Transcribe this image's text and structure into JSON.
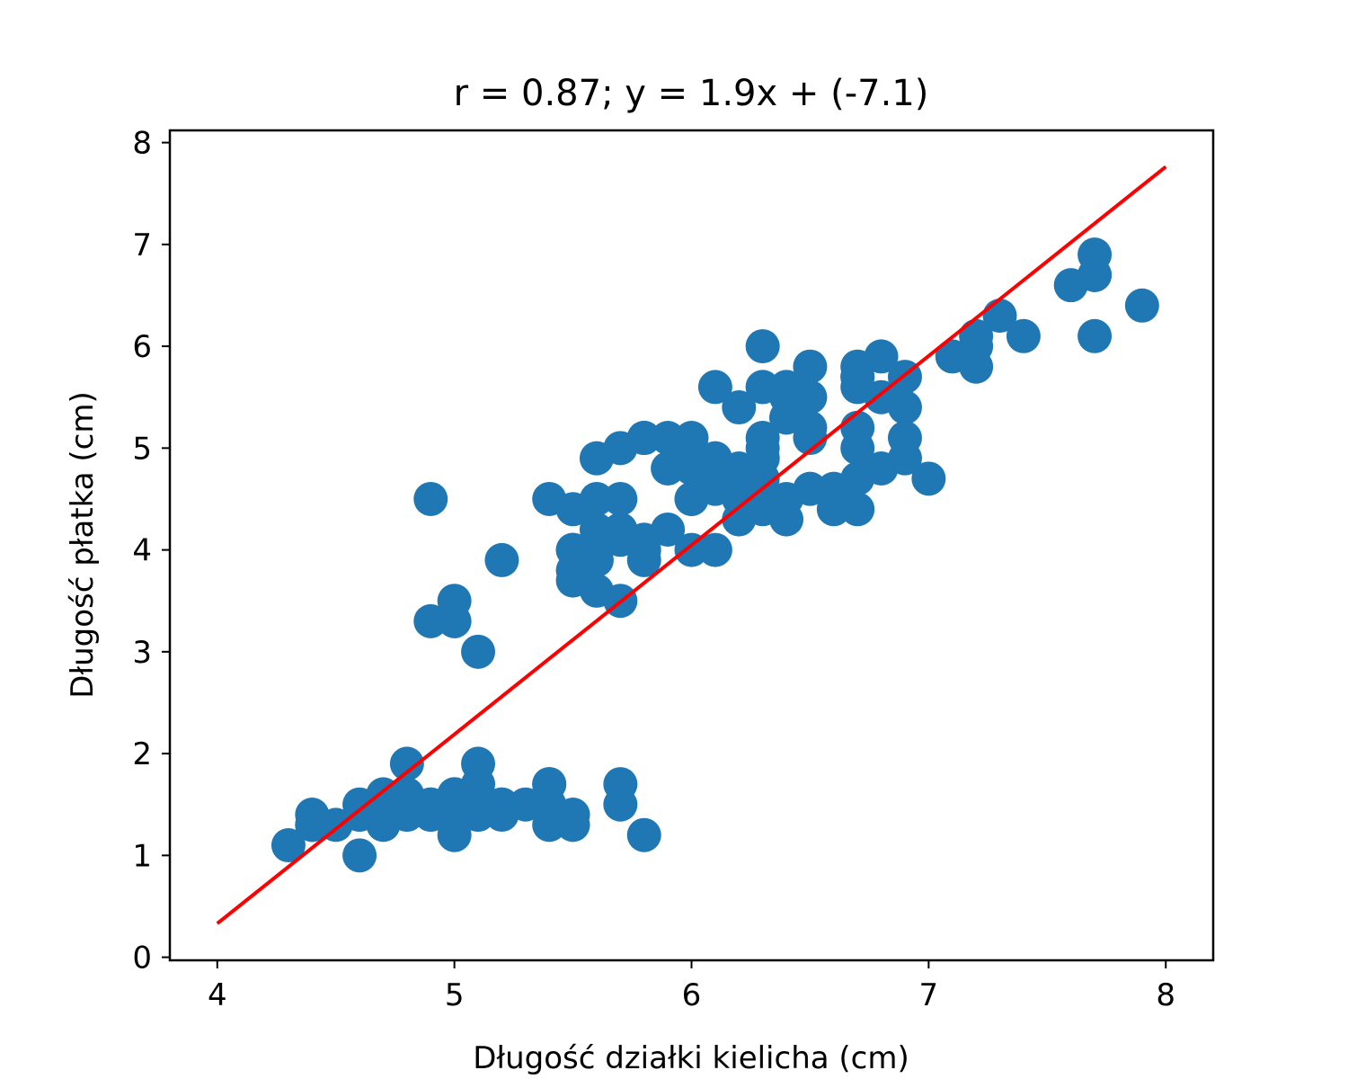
{
  "chart_data": {
    "type": "scatter",
    "title": "r = 0.87; y = 1.9x + (-7.1)",
    "xlabel": "Długość działki kielicha (cm)",
    "ylabel": "Długość płatka (cm)",
    "xlim": [
      3.8,
      8.2
    ],
    "ylim": [
      -0.03,
      8.12
    ],
    "xticks": [
      4,
      5,
      6,
      7,
      8
    ],
    "xtick_labels": [
      "4",
      "5",
      "6",
      "7",
      "8"
    ],
    "yticks": [
      0,
      1,
      2,
      3,
      4,
      5,
      6,
      7,
      8
    ],
    "ytick_labels": [
      "0",
      "1",
      "2",
      "3",
      "4",
      "5",
      "6",
      "7",
      "8"
    ],
    "grid": false,
    "colors": {
      "points": "#1f77b4",
      "fit_line": "#ff0000",
      "axes": "#000000"
    },
    "series": [
      {
        "x": [
          5.1,
          4.9,
          4.7,
          4.6,
          5.0,
          5.4,
          4.6,
          5.0,
          4.4,
          4.9,
          5.4,
          4.8,
          4.8,
          4.3,
          5.8,
          5.7,
          5.4,
          5.1,
          5.7,
          5.1,
          5.4,
          5.1,
          4.6,
          5.1,
          4.8,
          5.0,
          5.0,
          5.2,
          5.2,
          4.7,
          4.8,
          5.4,
          5.2,
          5.5,
          4.9,
          5.0,
          5.5,
          4.9,
          4.4,
          5.1,
          5.0,
          4.5,
          4.4,
          5.0,
          5.1,
          4.8,
          5.1,
          4.6,
          5.3,
          5.0,
          7.0,
          6.4,
          6.9,
          5.5,
          6.5,
          5.7,
          6.3,
          4.9,
          6.6,
          5.2,
          5.0,
          5.9,
          6.0,
          6.1,
          5.6,
          6.7,
          5.6,
          5.8,
          6.2,
          5.6,
          5.9,
          6.1,
          6.3,
          6.1,
          6.4,
          6.6,
          6.8,
          6.7,
          6.0,
          5.7,
          5.5,
          5.5,
          5.8,
          6.0,
          5.4,
          6.0,
          6.7,
          6.3,
          5.6,
          5.5,
          5.5,
          6.1,
          5.8,
          5.0,
          5.6,
          5.7,
          5.7,
          6.2,
          5.1,
          5.7,
          6.3,
          5.8,
          7.1,
          6.3,
          6.5,
          7.6,
          4.9,
          7.3,
          6.7,
          7.2,
          6.5,
          6.4,
          6.8,
          5.7,
          5.8,
          6.4,
          6.5,
          7.7,
          7.7,
          6.0,
          6.9,
          5.6,
          7.7,
          6.3,
          6.7,
          7.2,
          6.2,
          6.1,
          6.4,
          7.2,
          7.4,
          7.9,
          6.4,
          6.3,
          6.1,
          7.7,
          6.3,
          6.4,
          6.0,
          6.9,
          6.7,
          6.9,
          5.8,
          6.8,
          6.7,
          6.7,
          6.3,
          6.5,
          6.2,
          5.9
        ],
        "y": [
          1.4,
          1.4,
          1.3,
          1.5,
          1.4,
          1.7,
          1.4,
          1.5,
          1.4,
          1.5,
          1.5,
          1.6,
          1.4,
          1.1,
          1.2,
          1.5,
          1.3,
          1.4,
          1.7,
          1.5,
          1.7,
          1.5,
          1.0,
          1.7,
          1.9,
          1.6,
          1.6,
          1.5,
          1.4,
          1.6,
          1.6,
          1.5,
          1.5,
          1.4,
          1.5,
          1.2,
          1.3,
          1.4,
          1.3,
          1.5,
          1.3,
          1.3,
          1.3,
          1.6,
          1.9,
          1.4,
          1.6,
          1.4,
          1.5,
          1.4,
          4.7,
          4.5,
          4.9,
          4.0,
          4.6,
          4.5,
          4.7,
          3.3,
          4.6,
          3.9,
          3.5,
          4.2,
          4.0,
          4.7,
          3.6,
          4.4,
          4.5,
          4.1,
          4.5,
          3.9,
          4.8,
          4.0,
          4.9,
          4.7,
          4.3,
          4.4,
          4.8,
          5.0,
          4.5,
          3.5,
          3.8,
          3.7,
          3.9,
          5.1,
          4.5,
          4.5,
          4.7,
          4.4,
          4.1,
          4.0,
          4.4,
          4.6,
          4.0,
          3.3,
          4.2,
          4.2,
          4.2,
          4.3,
          3.0,
          4.1,
          6.0,
          5.1,
          5.9,
          5.6,
          5.8,
          6.6,
          4.5,
          6.3,
          5.8,
          6.1,
          5.1,
          5.3,
          5.5,
          5.0,
          5.1,
          5.3,
          5.5,
          6.7,
          6.9,
          5.0,
          5.7,
          4.9,
          6.7,
          4.9,
          5.7,
          6.0,
          4.8,
          4.9,
          5.6,
          5.8,
          6.1,
          6.4,
          5.6,
          5.1,
          5.6,
          6.1,
          5.6,
          5.5,
          4.8,
          5.4,
          5.6,
          5.1,
          5.1,
          5.9,
          5.7,
          5.2,
          5.0,
          5.2,
          5.4,
          5.1
        ]
      }
    ],
    "fit_line": {
      "slope": 1.858,
      "intercept": -7.101,
      "x_range": [
        4,
        8
      ]
    }
  }
}
